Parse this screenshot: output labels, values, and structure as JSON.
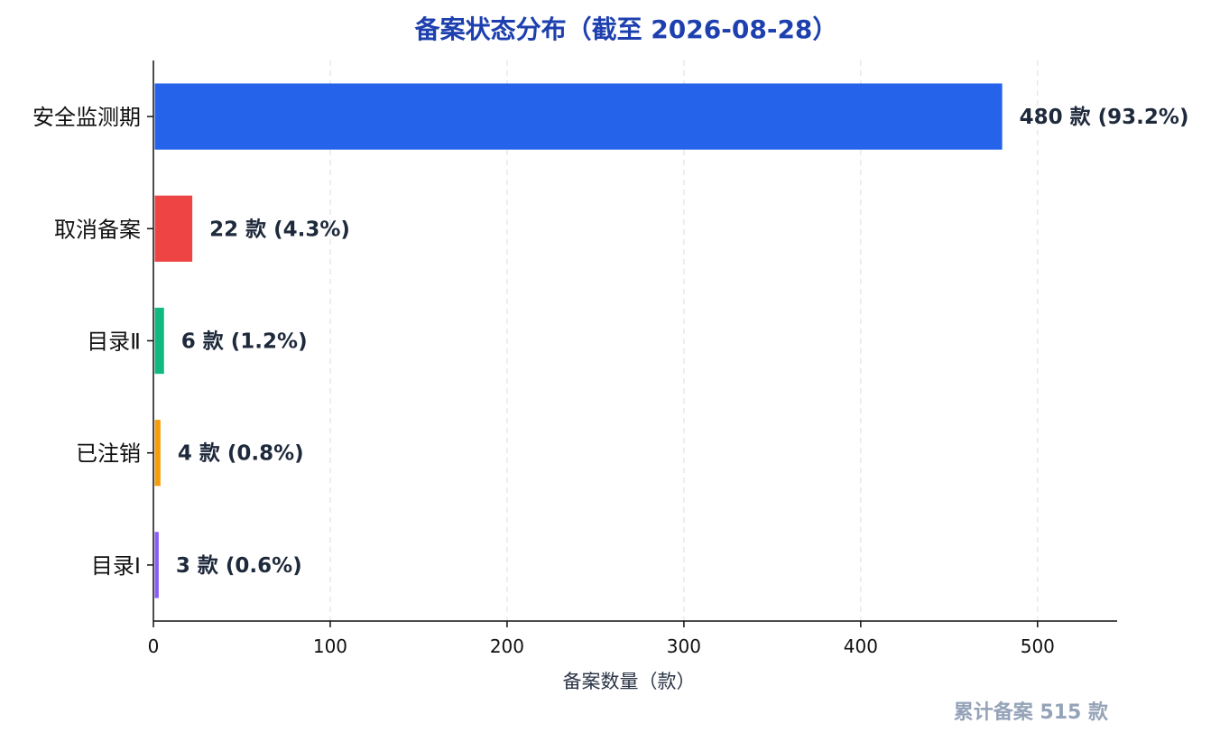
{
  "chart_data": {
    "type": "bar",
    "orientation": "horizontal",
    "title": "备案状态分布（截至 2026-08-28）",
    "xlabel": "备案数量（款）",
    "ylabel": "",
    "xlim": [
      0,
      545
    ],
    "xticks": [
      0,
      100,
      200,
      300,
      400,
      500
    ],
    "grid": "x-dashed",
    "categories": [
      "安全监测期",
      "取消备案",
      "目录Ⅱ",
      "已注销",
      "目录Ⅰ"
    ],
    "values": [
      480,
      22,
      6,
      4,
      3
    ],
    "colors": [
      "#2563eb",
      "#ef4444",
      "#10b981",
      "#f59e0b",
      "#8b5cf6"
    ],
    "data_labels": [
      "480 款  (93.2%)",
      "22 款  (4.3%)",
      "6 款  (1.2%)",
      "4 款  (0.8%)",
      "3 款  (0.6%)"
    ],
    "footer_note": "累计备案 515 款"
  },
  "style": {
    "title_color": "#1e40af",
    "footer_color": "#94a3b8"
  }
}
